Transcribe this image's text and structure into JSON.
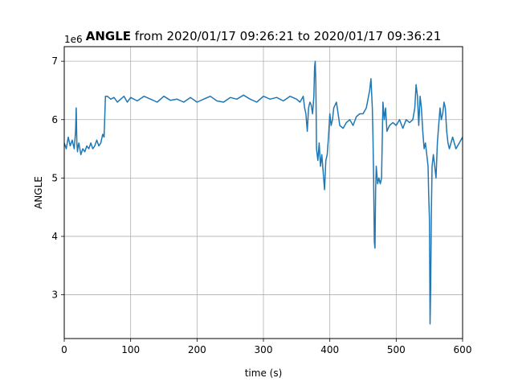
{
  "chart_data": {
    "type": "line",
    "title": "ANGLE from 2020/01/17 09:26:21 to 2020/01/17 09:36:21",
    "title_bold_part": "ANGLE",
    "title_rest": " from 2020/01/17 09:26:21 to 2020/01/17 09:36:21",
    "xlabel": "time (s)",
    "ylabel": "ANGLE",
    "y_offset_label": "1e6",
    "xlim": [
      0,
      600
    ],
    "ylim": [
      2.25,
      7.25
    ],
    "x_ticks": [
      0,
      100,
      200,
      300,
      400,
      500,
      600
    ],
    "x_tick_labels": [
      "0",
      "100",
      "200",
      "300",
      "400",
      "500",
      "600"
    ],
    "y_ticks": [
      3,
      4,
      5,
      6,
      7
    ],
    "y_tick_labels": [
      "3",
      "4",
      "5",
      "6",
      "7"
    ],
    "grid": true,
    "line_color": "#1f77b4",
    "series": [
      {
        "x": [
          0,
          3,
          6,
          9,
          12,
          15,
          17,
          18,
          19,
          20,
          21,
          22,
          25,
          28,
          31,
          34,
          37,
          40,
          43,
          46,
          49,
          52,
          55,
          58,
          60,
          62,
          65,
          70,
          75,
          80,
          85,
          90,
          95,
          100,
          110,
          120,
          130,
          140,
          150,
          160,
          170,
          180,
          190,
          200,
          210,
          220,
          230,
          240,
          250,
          260,
          270,
          280,
          290,
          300,
          310,
          320,
          330,
          340,
          350,
          355,
          360,
          362,
          364,
          366,
          368,
          370,
          372,
          374,
          376,
          377,
          378,
          379,
          380,
          382,
          384,
          386,
          388,
          390,
          392,
          394,
          396,
          398,
          400,
          402,
          404,
          406,
          410,
          415,
          420,
          425,
          430,
          435,
          440,
          445,
          450,
          455,
          460,
          462,
          464,
          465,
          466,
          467,
          468,
          469,
          470,
          472,
          474,
          476,
          478,
          480,
          482,
          484,
          486,
          488,
          490,
          495,
          500,
          505,
          510,
          515,
          520,
          525,
          528,
          530,
          532,
          534,
          536,
          538,
          540,
          542,
          544,
          546,
          548,
          549,
          550,
          551,
          552,
          553,
          554,
          556,
          558,
          560,
          562,
          564,
          566,
          568,
          570,
          572,
          574,
          576,
          578,
          580,
          585,
          590,
          595,
          600
        ],
        "y": [
          5.6,
          5.5,
          5.7,
          5.55,
          5.65,
          5.5,
          5.8,
          6.2,
          5.6,
          5.45,
          5.55,
          5.6,
          5.4,
          5.5,
          5.45,
          5.55,
          5.5,
          5.6,
          5.5,
          5.55,
          5.65,
          5.55,
          5.6,
          5.75,
          5.7,
          6.4,
          6.4,
          6.35,
          6.38,
          6.3,
          6.35,
          6.4,
          6.3,
          6.38,
          6.32,
          6.4,
          6.35,
          6.3,
          6.4,
          6.33,
          6.35,
          6.3,
          6.38,
          6.3,
          6.35,
          6.4,
          6.32,
          6.3,
          6.38,
          6.35,
          6.42,
          6.35,
          6.3,
          6.4,
          6.35,
          6.38,
          6.32,
          6.4,
          6.35,
          6.3,
          6.4,
          6.2,
          6.1,
          5.8,
          6.2,
          6.3,
          6.25,
          6.1,
          6.4,
          6.9,
          7.0,
          6.6,
          5.5,
          5.3,
          5.6,
          5.2,
          5.4,
          5.1,
          4.8,
          5.3,
          5.4,
          5.7,
          6.1,
          5.9,
          6.0,
          6.2,
          6.3,
          5.9,
          5.85,
          5.95,
          6.0,
          5.9,
          6.05,
          6.1,
          6.1,
          6.2,
          6.5,
          6.7,
          6.2,
          5.7,
          5.0,
          3.9,
          3.8,
          4.8,
          5.2,
          4.9,
          5.0,
          4.9,
          5.0,
          6.3,
          6.0,
          6.2,
          5.8,
          5.85,
          5.9,
          5.95,
          5.9,
          6.0,
          5.85,
          6.0,
          5.95,
          6.0,
          6.2,
          6.6,
          6.4,
          5.9,
          6.4,
          6.2,
          5.8,
          5.5,
          5.6,
          5.4,
          5.2,
          4.7,
          4.3,
          2.5,
          3.2,
          4.4,
          5.2,
          5.4,
          5.2,
          5.0,
          5.6,
          5.9,
          6.2,
          6.0,
          6.1,
          6.3,
          6.2,
          5.8,
          5.6,
          5.5,
          5.7,
          5.5,
          5.6,
          5.7
        ]
      }
    ]
  }
}
